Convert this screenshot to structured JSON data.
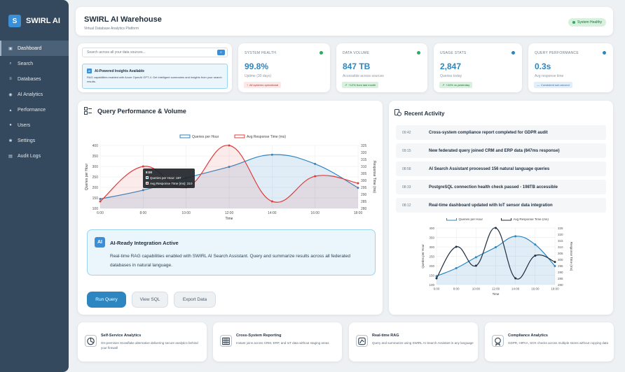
{
  "sidebar": {
    "logo_letter": "S",
    "logo_text": "SWIRL AI",
    "items": [
      {
        "label": "Dashboard",
        "icon": "dashboard-icon",
        "glyph": "▣"
      },
      {
        "label": "Search",
        "icon": "search-icon",
        "glyph": "⌕"
      },
      {
        "label": "Databases",
        "icon": "database-icon",
        "glyph": "≡"
      },
      {
        "label": "AI Analytics",
        "icon": "ai-icon",
        "glyph": "◉"
      },
      {
        "label": "Performance",
        "icon": "performance-icon",
        "glyph": "▴"
      },
      {
        "label": "Users",
        "icon": "users-icon",
        "glyph": "●"
      },
      {
        "label": "Settings",
        "icon": "gear-icon",
        "glyph": "✱"
      },
      {
        "label": "Audit Logs",
        "icon": "logs-icon",
        "glyph": "▤"
      }
    ]
  },
  "header": {
    "title": "SWIRL AI Warehouse",
    "subtitle": "Virtual Database Analytics Platform",
    "status": "System Healthy"
  },
  "search": {
    "placeholder": "Search across all your data sources...",
    "button": "⌕",
    "insight_icon": "AI",
    "insight_title": "AI-Powered Insights Available",
    "insight_text": "RAG capabilities enabled with Azure OpenAI GPT-4. Get intelligent summaries and insights from your search results."
  },
  "stats": [
    {
      "label": "SYSTEM HEALTH",
      "value": "99.8%",
      "sub": "Uptime (30 days)",
      "pill": "All systems operational",
      "pill_icon": "↑",
      "dot_color": "#27ae60"
    },
    {
      "label": "DATA VOLUME",
      "value": "847 TB",
      "sub": "Accessible across sources",
      "pill": "+12% from last month",
      "pill_icon": "↗",
      "dot_color": "#27ae60"
    },
    {
      "label": "USAGE STATS",
      "value": "2,847",
      "sub": "Queries today",
      "pill": "+24% vs yesterday",
      "pill_icon": "↗",
      "dot_color": "#2e86c1"
    },
    {
      "label": "QUERY PERFORMANCE",
      "value": "0.3s",
      "sub": "Avg response time",
      "pill": "Consistent sub-second",
      "pill_icon": "—",
      "dot_color": "#2e86c1"
    }
  ],
  "main_chart": {
    "title": "Query Performance & Volume",
    "tooltip": {
      "title": "8:00",
      "line1": "Queries per Hour: 187",
      "line2": "Avg Response Time (ms): 310"
    }
  },
  "ai_banner": {
    "icon": "AI",
    "title": "AI-Ready Integration Active",
    "text": "Real-time RAG capabilities enabled with SWIRL AI Search Assistant. Query and summarize results across all federated databases in natural language."
  },
  "actions": {
    "run": "Run Query",
    "view": "View SQL",
    "export": "Export Data"
  },
  "activity": {
    "title": "Recent Activity",
    "items": [
      {
        "time": "09:42",
        "text": "Cross-system compliance report completed for GDPR audit"
      },
      {
        "time": "09:15",
        "text": "New federated query joined CRM and ERP data (847ms response)"
      },
      {
        "time": "08:58",
        "text": "AI Search Assistant processed 156 natural language queries"
      },
      {
        "time": "08:33",
        "text": "PostgreSQL connection health check passed - 198TB accessible"
      },
      {
        "time": "08:12",
        "text": "Real-time dashboard updated with IoT sensor data integration"
      }
    ]
  },
  "features": [
    {
      "title": "Self-Service Analytics",
      "text": "On-premises Snowflake alternative delivering secure analytics behind your firewall",
      "icon": "self-service-icon"
    },
    {
      "title": "Cross-System Reporting",
      "text": "Instant joins across CRM, ERP, and IoT data without staging areas",
      "icon": "grid-icon"
    },
    {
      "title": "Real-time RAG",
      "text": "Query and summarize using SWIRL AI Search Assistant in any language",
      "icon": "rag-icon"
    },
    {
      "title": "Compliance Analytics",
      "text": "GDPR, HIPAA, SOX checks across multiple stores without copying data",
      "icon": "compliance-icon"
    }
  ],
  "chart_data": [
    {
      "type": "line",
      "title": "Query Performance & Volume",
      "xlabel": "Time",
      "ylabel": "Queries per Hour",
      "y2label": "Response Time (ms)",
      "x": [
        "6:00",
        "8:00",
        "10:00",
        "12:00",
        "14:00",
        "16:00",
        "18:00"
      ],
      "ylim": [
        100,
        400
      ],
      "y2lim": [
        280,
        325
      ],
      "yticks": [
        100,
        150,
        200,
        250,
        300,
        350,
        400
      ],
      "y2ticks": [
        280,
        285,
        290,
        295,
        300,
        305,
        310,
        315,
        320,
        325
      ],
      "series": [
        {
          "name": "Queries per Hour",
          "axis": "left",
          "color": "#2e86c1",
          "values": [
            145,
            187,
            245,
            298,
            356,
            312,
            198
          ]
        },
        {
          "name": "Avg Response Time (ms)",
          "axis": "right",
          "color": "#e03c3c",
          "values": [
            285,
            310,
            295,
            325,
            285,
            303,
            298
          ]
        }
      ]
    },
    {
      "type": "line",
      "xlabel": "Time",
      "ylabel": "Queries per Hour",
      "y2label": "Response Time (ms)",
      "x": [
        "6:00",
        "8:00",
        "10:00",
        "12:00",
        "14:00",
        "16:00",
        "18:00"
      ],
      "ylim": [
        100,
        400
      ],
      "y2lim": [
        280,
        325
      ],
      "yticks": [
        100,
        150,
        200,
        250,
        300,
        350,
        400
      ],
      "y2ticks": [
        280,
        285,
        290,
        295,
        300,
        305,
        310,
        315,
        320,
        325
      ],
      "series": [
        {
          "name": "Queries per Hour",
          "axis": "left",
          "color": "#2e86c1",
          "values": [
            145,
            187,
            245,
            298,
            356,
            312,
            198
          ]
        },
        {
          "name": "Avg Response Time (ms)",
          "axis": "right",
          "color": "#1f2d3d",
          "values": [
            285,
            310,
            295,
            325,
            285,
            303,
            298
          ]
        }
      ]
    }
  ]
}
